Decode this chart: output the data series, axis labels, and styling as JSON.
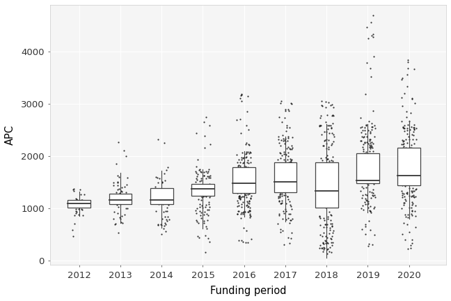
{
  "years": [
    2012,
    2013,
    2014,
    2015,
    2016,
    2017,
    2018,
    2019,
    2020
  ],
  "boxes": [
    {
      "year": 2012,
      "q1": 1020,
      "median": 1100,
      "q3": 1170,
      "whisker_low": 860,
      "whisker_high": 1320,
      "n_points": 35
    },
    {
      "year": 2013,
      "q1": 1080,
      "median": 1160,
      "q3": 1290,
      "whisker_low": 720,
      "whisker_high": 1680,
      "n_points": 55
    },
    {
      "year": 2014,
      "q1": 1080,
      "median": 1160,
      "q3": 1390,
      "whisker_low": 630,
      "whisker_high": 1730,
      "n_points": 60
    },
    {
      "year": 2015,
      "q1": 1240,
      "median": 1380,
      "q3": 1470,
      "whisker_low": 620,
      "whisker_high": 1750,
      "n_points": 120
    },
    {
      "year": 2016,
      "q1": 1300,
      "median": 1490,
      "q3": 1790,
      "whisker_low": 850,
      "whisker_high": 2100,
      "n_points": 200
    },
    {
      "year": 2017,
      "q1": 1310,
      "median": 1510,
      "q3": 1880,
      "whisker_low": 750,
      "whisker_high": 2380,
      "n_points": 210
    },
    {
      "year": 2018,
      "q1": 1020,
      "median": 1340,
      "q3": 1880,
      "whisker_low": 60,
      "whisker_high": 2620,
      "n_points": 220
    },
    {
      "year": 2019,
      "q1": 1490,
      "median": 1540,
      "q3": 2060,
      "whisker_low": 920,
      "whisker_high": 2620,
      "n_points": 200
    },
    {
      "year": 2020,
      "q1": 1450,
      "median": 1630,
      "q3": 2160,
      "whisker_low": 810,
      "whisker_high": 2680,
      "n_points": 220
    }
  ],
  "outlier_ranges": [
    {
      "year": 2012,
      "low": [
        430,
        860
      ],
      "high": [
        1320,
        1430
      ]
    },
    {
      "year": 2013,
      "low": [
        430,
        720
      ],
      "high": [
        1680,
        2400
      ]
    },
    {
      "year": 2014,
      "low": [
        490,
        630
      ],
      "high": [
        1730,
        2400
      ]
    },
    {
      "year": 2015,
      "low": [
        90,
        620
      ],
      "high": [
        1750,
        2850
      ]
    },
    {
      "year": 2016,
      "low": [
        90,
        850
      ],
      "high": [
        2100,
        3250
      ]
    },
    {
      "year": 2017,
      "low": [
        200,
        750
      ],
      "high": [
        2380,
        3060
      ]
    },
    {
      "year": 2018,
      "low": [
        60,
        60
      ],
      "high": [
        2620,
        3060
      ]
    },
    {
      "year": 2019,
      "low": [
        200,
        920
      ],
      "high": [
        2620,
        4700
      ]
    },
    {
      "year": 2020,
      "low": [
        200,
        810
      ],
      "high": [
        2680,
        3860
      ]
    }
  ],
  "xlabel": "Funding period",
  "ylabel": "APC",
  "ylim": [
    -80,
    4900
  ],
  "yticks": [
    0,
    1000,
    2000,
    3000,
    4000
  ],
  "background_color": "#ffffff",
  "panel_background": "#f5f5f5",
  "grid_color": "#ffffff",
  "box_color": "#ffffff",
  "box_edge_color": "#444444",
  "median_color": "#444444",
  "whisker_color": "#444444",
  "outlier_color": "#111111",
  "point_color": "#111111",
  "box_width": 0.55
}
